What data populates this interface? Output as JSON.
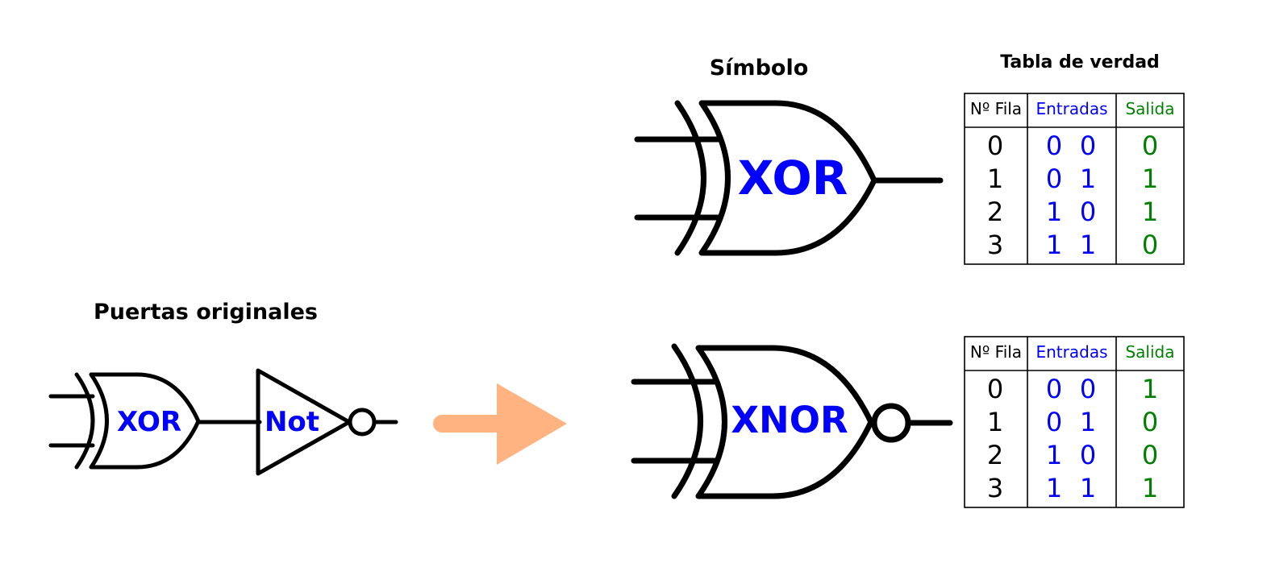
{
  "left": {
    "title": "Puertas originales",
    "xor_label": "XOR",
    "not_label": "Not"
  },
  "arrow": {
    "color": "#ffb380"
  },
  "symbol": {
    "title": "Símbolo",
    "xor_label": "XOR",
    "xnor_label": "XNOR"
  },
  "truth_title": "Tabla de verdad",
  "colors": {
    "inputs": "#0000ff",
    "output": "#008000",
    "row": "#000000"
  },
  "xor_table": {
    "headers": {
      "row": "Nº Fila",
      "inputs": "Entradas",
      "output": "Salida"
    },
    "rows": [
      {
        "n": "0",
        "a": "0",
        "b": "0",
        "out": "0"
      },
      {
        "n": "1",
        "a": "0",
        "b": "1",
        "out": "1"
      },
      {
        "n": "2",
        "a": "1",
        "b": "0",
        "out": "1"
      },
      {
        "n": "3",
        "a": "1",
        "b": "1",
        "out": "0"
      }
    ]
  },
  "xnor_table": {
    "headers": {
      "row": "Nº Fila",
      "inputs": "Entradas",
      "output": "Salida"
    },
    "rows": [
      {
        "n": "0",
        "a": "0",
        "b": "0",
        "out": "1"
      },
      {
        "n": "1",
        "a": "0",
        "b": "1",
        "out": "0"
      },
      {
        "n": "2",
        "a": "1",
        "b": "0",
        "out": "0"
      },
      {
        "n": "3",
        "a": "1",
        "b": "1",
        "out": "1"
      }
    ]
  }
}
